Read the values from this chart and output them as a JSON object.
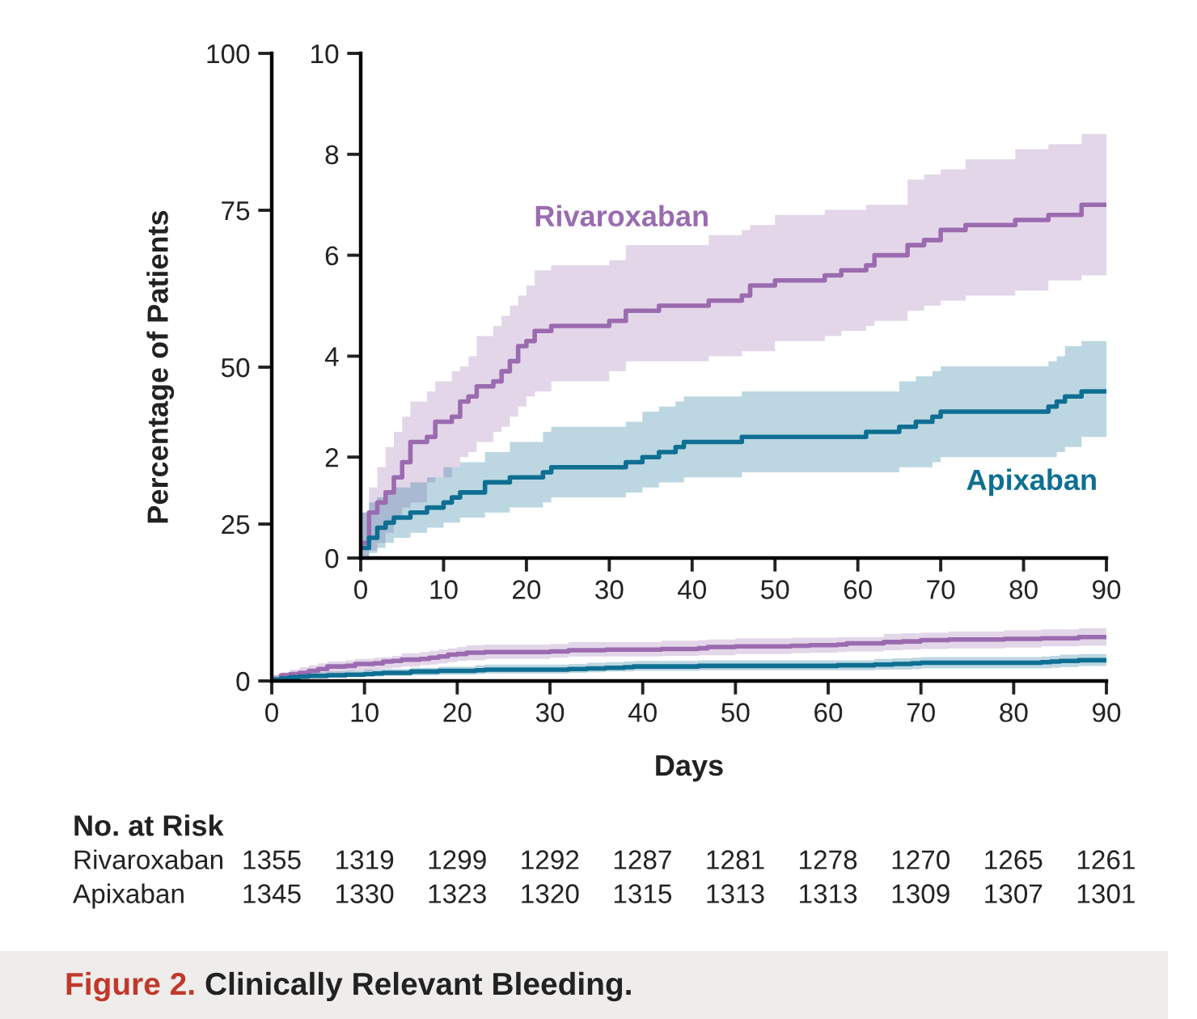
{
  "chart_data": [
    {
      "type": "step",
      "title": "Figure 2.",
      "subtitle": "Clinically Relevant Bleeding.",
      "xlabel": "Days",
      "ylabel": "Percentage of Patients",
      "xlim": [
        0,
        90
      ],
      "xticks": [
        0,
        10,
        20,
        30,
        40,
        50,
        60,
        70,
        80,
        90
      ],
      "ylim": [
        0,
        100
      ],
      "yticks": [
        0,
        25,
        50,
        75,
        100
      ],
      "grid": false,
      "legend": false,
      "annotations": [
        "No. at Risk",
        "Rivaroxaban",
        "1355",
        "1319",
        "1299",
        "1292",
        "1287",
        "1281",
        "1278",
        "1270",
        "1265",
        "1261",
        "Apixaban",
        "1345",
        "1330",
        "1323",
        "1320",
        "1315",
        "1313",
        "1313",
        "1309",
        "1307",
        "1301"
      ],
      "series": [
        {
          "color": "#9b6bb0",
          "x": [
            0,
            1,
            2,
            3,
            4,
            5,
            6,
            8,
            9,
            11,
            12,
            13,
            14,
            16,
            17,
            18,
            19,
            20,
            21,
            23,
            30,
            32,
            36,
            42,
            46,
            47,
            50,
            56,
            58,
            61,
            62,
            66,
            68,
            70,
            73,
            79,
            83,
            87,
            90
          ],
          "values": [
            0.3,
            0.9,
            1.1,
            1.3,
            1.6,
            1.9,
            2.3,
            2.4,
            2.7,
            2.8,
            3.1,
            3.2,
            3.4,
            3.5,
            3.7,
            3.9,
            4.2,
            4.3,
            4.5,
            4.6,
            4.7,
            4.9,
            5.0,
            5.1,
            5.2,
            5.4,
            5.5,
            5.6,
            5.7,
            5.8,
            6.0,
            6.2,
            6.3,
            6.5,
            6.6,
            6.7,
            6.8,
            7.0,
            7.0
          ],
          "lower": [
            0,
            0.15,
            0.3,
            0.5,
            0.75,
            1.0,
            1.1,
            1.5,
            1.6,
            1.8,
            2.0,
            2.1,
            2.3,
            2.5,
            2.6,
            2.8,
            3.0,
            3.2,
            3.3,
            3.5,
            3.7,
            3.9,
            3.9,
            4.0,
            4.1,
            4.1,
            4.3,
            4.4,
            4.5,
            4.6,
            4.7,
            4.9,
            5.0,
            5.1,
            5.2,
            5.3,
            5.5,
            5.6,
            5.7
          ],
          "upper": [
            0.9,
            1.4,
            1.8,
            2.2,
            2.5,
            2.8,
            3.1,
            3.3,
            3.5,
            3.7,
            3.8,
            4.0,
            4.4,
            4.6,
            4.8,
            5.0,
            5.2,
            5.4,
            5.7,
            5.8,
            5.9,
            6.2,
            6.2,
            6.4,
            6.5,
            6.6,
            6.8,
            6.9,
            6.9,
            7.0,
            7.0,
            7.5,
            7.6,
            7.7,
            7.9,
            8.1,
            8.2,
            8.4,
            8.4
          ]
        },
        {
          "color": "#0e6f92",
          "x": [
            0,
            1,
            2,
            3,
            4,
            6,
            8,
            10,
            11,
            12,
            15,
            18,
            22,
            23,
            32,
            34,
            36,
            38,
            39,
            46,
            61,
            65,
            67,
            69,
            70,
            83,
            84,
            85,
            87,
            90
          ],
          "values": [
            0.2,
            0.4,
            0.6,
            0.7,
            0.8,
            0.9,
            1.0,
            1.1,
            1.2,
            1.3,
            1.5,
            1.6,
            1.7,
            1.8,
            1.9,
            2.0,
            2.1,
            2.2,
            2.3,
            2.4,
            2.5,
            2.6,
            2.7,
            2.8,
            2.9,
            3.0,
            3.1,
            3.2,
            3.3,
            3.3
          ],
          "lower": [
            0,
            0.1,
            0.2,
            0.3,
            0.4,
            0.5,
            0.6,
            0.7,
            0.7,
            0.8,
            0.9,
            1.0,
            1.1,
            1.2,
            1.3,
            1.4,
            1.5,
            1.5,
            1.6,
            1.7,
            1.7,
            1.8,
            1.8,
            1.9,
            2.0,
            2.0,
            2.1,
            2.2,
            2.4,
            2.4
          ],
          "upper": [
            0.9,
            1.1,
            1.2,
            1.3,
            1.4,
            1.5,
            1.6,
            1.8,
            1.8,
            1.9,
            2.1,
            2.3,
            2.5,
            2.6,
            2.7,
            2.9,
            3.0,
            3.1,
            3.2,
            3.3,
            3.3,
            3.5,
            3.6,
            3.7,
            3.8,
            3.9,
            4.0,
            4.2,
            4.3,
            4.3
          ]
        }
      ]
    },
    {
      "type": "step",
      "xlim": [
        0,
        90
      ],
      "xticks": [
        0,
        10,
        20,
        30,
        40,
        50,
        60,
        70,
        80,
        90
      ],
      "ylim": [
        0,
        10
      ],
      "yticks": [
        0,
        2,
        4,
        6,
        8,
        10
      ],
      "grid": false,
      "legend": false,
      "series": [
        {
          "name": "Rivaroxaban",
          "color": "#9b6bb0",
          "x": [
            0,
            1,
            2,
            3,
            4,
            5,
            6,
            8,
            9,
            11,
            12,
            13,
            14,
            16,
            17,
            18,
            19,
            20,
            21,
            23,
            30,
            32,
            36,
            42,
            46,
            47,
            50,
            56,
            58,
            61,
            62,
            66,
            68,
            70,
            73,
            79,
            83,
            87,
            90
          ],
          "values": [
            0.3,
            0.9,
            1.1,
            1.3,
            1.6,
            1.9,
            2.3,
            2.4,
            2.7,
            2.8,
            3.1,
            3.2,
            3.4,
            3.5,
            3.7,
            3.9,
            4.2,
            4.3,
            4.5,
            4.6,
            4.7,
            4.9,
            5.0,
            5.1,
            5.2,
            5.4,
            5.5,
            5.6,
            5.7,
            5.8,
            6.0,
            6.2,
            6.3,
            6.5,
            6.6,
            6.7,
            6.8,
            7.0,
            7.0
          ],
          "lower": [
            0,
            0.15,
            0.3,
            0.5,
            0.75,
            1.0,
            1.1,
            1.5,
            1.6,
            1.8,
            2.0,
            2.1,
            2.3,
            2.5,
            2.6,
            2.8,
            3.0,
            3.2,
            3.3,
            3.5,
            3.7,
            3.9,
            3.9,
            4.0,
            4.1,
            4.1,
            4.3,
            4.4,
            4.5,
            4.6,
            4.7,
            4.9,
            5.0,
            5.1,
            5.2,
            5.3,
            5.5,
            5.6,
            5.7
          ],
          "upper": [
            0.9,
            1.4,
            1.8,
            2.2,
            2.5,
            2.8,
            3.1,
            3.3,
            3.5,
            3.7,
            3.8,
            4.0,
            4.4,
            4.6,
            4.8,
            5.0,
            5.2,
            5.4,
            5.7,
            5.8,
            5.9,
            6.2,
            6.2,
            6.4,
            6.5,
            6.6,
            6.8,
            6.9,
            6.9,
            7.0,
            7.0,
            7.5,
            7.6,
            7.7,
            7.9,
            8.1,
            8.2,
            8.4,
            8.4
          ]
        },
        {
          "name": "Apixaban",
          "color": "#0e6f92",
          "x": [
            0,
            1,
            2,
            3,
            4,
            6,
            8,
            10,
            11,
            12,
            15,
            18,
            22,
            23,
            32,
            34,
            36,
            38,
            39,
            46,
            61,
            65,
            67,
            69,
            70,
            83,
            84,
            85,
            87,
            90
          ],
          "values": [
            0.2,
            0.4,
            0.6,
            0.7,
            0.8,
            0.9,
            1.0,
            1.1,
            1.2,
            1.3,
            1.5,
            1.6,
            1.7,
            1.8,
            1.9,
            2.0,
            2.1,
            2.2,
            2.3,
            2.4,
            2.5,
            2.6,
            2.7,
            2.8,
            2.9,
            3.0,
            3.1,
            3.2,
            3.3,
            3.3
          ],
          "lower": [
            0,
            0.1,
            0.2,
            0.3,
            0.4,
            0.5,
            0.6,
            0.7,
            0.7,
            0.8,
            0.9,
            1.0,
            1.1,
            1.2,
            1.3,
            1.4,
            1.5,
            1.5,
            1.6,
            1.7,
            1.7,
            1.8,
            1.8,
            1.9,
            2.0,
            2.0,
            2.1,
            2.2,
            2.4,
            2.4
          ],
          "upper": [
            0.9,
            1.1,
            1.2,
            1.3,
            1.4,
            1.5,
            1.6,
            1.8,
            1.8,
            1.9,
            2.1,
            2.3,
            2.5,
            2.6,
            2.7,
            2.9,
            3.0,
            3.1,
            3.2,
            3.3,
            3.3,
            3.5,
            3.6,
            3.7,
            3.8,
            3.9,
            4.0,
            4.2,
            4.3,
            4.3
          ]
        }
      ]
    }
  ]
}
